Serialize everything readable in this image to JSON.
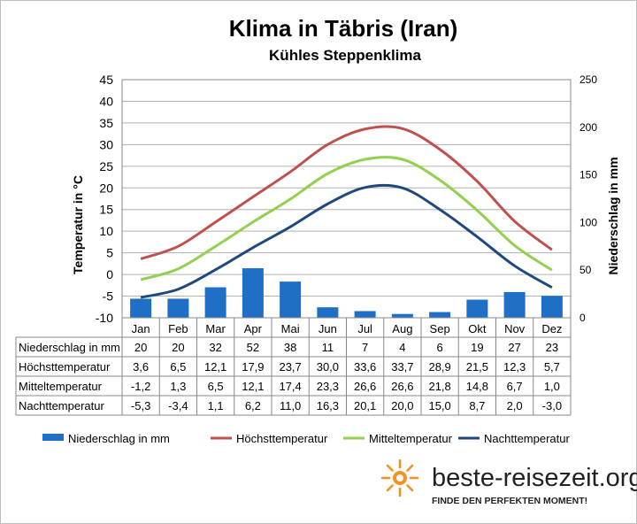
{
  "chart_data": {
    "type": "bar+line",
    "title": "Klima in Täbris (Iran)",
    "subtitle": "Kühles Steppenklima",
    "ylabel": "Temperatur in °C",
    "ylabel_right": "Niederschlag in mm",
    "ylim": [
      -10,
      45
    ],
    "yticks": [
      -10,
      -5,
      0,
      5,
      10,
      15,
      20,
      25,
      30,
      35,
      40,
      45
    ],
    "ylim_right": [
      0,
      250
    ],
    "yticks_right": [
      0,
      50,
      100,
      150,
      200,
      250
    ],
    "categories": [
      "Jan",
      "Feb",
      "Mar",
      "Apr",
      "Mai",
      "Jun",
      "Jul",
      "Aug",
      "Sep",
      "Okt",
      "Nov",
      "Dez"
    ],
    "grid": "horizontal",
    "legend_position": "bottom",
    "series": [
      {
        "name": "Niederschlag in mm",
        "type": "bar",
        "axis": "right",
        "color": "#1f6fc6",
        "values": [
          20,
          20,
          32,
          52,
          38,
          11,
          7,
          4,
          6,
          19,
          27,
          23
        ],
        "labels": [
          "20",
          "20",
          "32",
          "52",
          "38",
          "11",
          "7",
          "4",
          "6",
          "19",
          "27",
          "23"
        ]
      },
      {
        "name": "Höchsttemperatur",
        "type": "line",
        "axis": "left",
        "color": "#c0504d",
        "values": [
          3.6,
          6.5,
          12.1,
          17.9,
          23.7,
          30.0,
          33.6,
          33.7,
          28.9,
          21.5,
          12.3,
          5.7
        ],
        "labels": [
          "3,6",
          "6,5",
          "12,1",
          "17,9",
          "23,7",
          "30,0",
          "33,6",
          "33,7",
          "28,9",
          "21,5",
          "12,3",
          "5,7"
        ]
      },
      {
        "name": "Mitteltemperatur",
        "type": "line",
        "axis": "left",
        "color": "#92d050",
        "values": [
          -1.2,
          1.3,
          6.5,
          12.1,
          17.4,
          23.3,
          26.6,
          26.6,
          21.8,
          14.8,
          6.7,
          1.0
        ],
        "labels": [
          "-1,2",
          "1,3",
          "6,5",
          "12,1",
          "17,4",
          "23,3",
          "26,6",
          "26,6",
          "21,8",
          "14,8",
          "6,7",
          "1,0"
        ]
      },
      {
        "name": "Nachttemperatur",
        "type": "line",
        "axis": "left",
        "color": "#1f497d",
        "values": [
          -5.3,
          -3.4,
          1.1,
          6.2,
          11.0,
          16.3,
          20.1,
          20.0,
          15.0,
          8.7,
          2.0,
          -3.0
        ],
        "labels": [
          "-5,3",
          "-3,4",
          "1,1",
          "6,2",
          "11,0",
          "16,3",
          "20,1",
          "20,0",
          "15,0",
          "8,7",
          "2,0",
          "-3,0"
        ]
      }
    ]
  },
  "branding": {
    "name": "beste-reisezeit.org",
    "slogan": "FINDE DEN PERFEKTEN MOMENT!",
    "sun_color": "#f39221",
    "icon": "sun-logo-icon"
  }
}
